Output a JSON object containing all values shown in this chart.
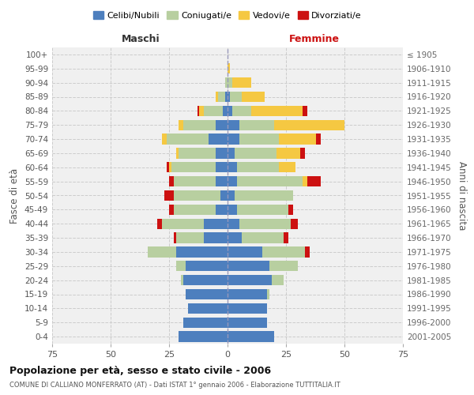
{
  "age_groups": [
    "0-4",
    "5-9",
    "10-14",
    "15-19",
    "20-24",
    "25-29",
    "30-34",
    "35-39",
    "40-44",
    "45-49",
    "50-54",
    "55-59",
    "60-64",
    "65-69",
    "70-74",
    "75-79",
    "80-84",
    "85-89",
    "90-94",
    "95-99",
    "100+"
  ],
  "birth_years": [
    "2001-2005",
    "1996-2000",
    "1991-1995",
    "1986-1990",
    "1981-1985",
    "1976-1980",
    "1971-1975",
    "1966-1970",
    "1961-1965",
    "1956-1960",
    "1951-1955",
    "1946-1950",
    "1941-1945",
    "1936-1940",
    "1931-1935",
    "1926-1930",
    "1921-1925",
    "1916-1920",
    "1911-1915",
    "1906-1910",
    "≤ 1905"
  ],
  "colors": {
    "celibi": "#4d7fbe",
    "coniugati": "#b8cfa0",
    "vedovi": "#f5c842",
    "divorziati": "#cc1111"
  },
  "maschi": {
    "celibi": [
      21,
      19,
      17,
      18,
      19,
      18,
      22,
      10,
      10,
      5,
      3,
      5,
      5,
      5,
      8,
      5,
      2,
      1,
      0,
      0,
      0
    ],
    "coniugati": [
      0,
      0,
      0,
      0,
      1,
      4,
      12,
      12,
      18,
      18,
      20,
      18,
      19,
      16,
      18,
      14,
      8,
      3,
      1,
      0,
      0
    ],
    "vedovi": [
      0,
      0,
      0,
      0,
      0,
      0,
      0,
      0,
      0,
      0,
      0,
      0,
      1,
      1,
      2,
      2,
      2,
      1,
      0,
      0,
      0
    ],
    "divorziati": [
      0,
      0,
      0,
      0,
      0,
      0,
      0,
      1,
      2,
      2,
      4,
      2,
      1,
      0,
      0,
      0,
      1,
      0,
      0,
      0,
      0
    ]
  },
  "femmine": {
    "celibi": [
      20,
      17,
      17,
      17,
      19,
      18,
      15,
      6,
      5,
      4,
      3,
      4,
      4,
      3,
      5,
      5,
      2,
      1,
      0,
      0,
      0
    ],
    "coniugati": [
      0,
      0,
      0,
      1,
      5,
      12,
      18,
      18,
      22,
      22,
      25,
      28,
      18,
      18,
      17,
      15,
      8,
      5,
      2,
      0,
      0
    ],
    "vedovi": [
      0,
      0,
      0,
      0,
      0,
      0,
      0,
      0,
      0,
      0,
      0,
      2,
      7,
      10,
      16,
      30,
      22,
      10,
      8,
      1,
      0
    ],
    "divorziati": [
      0,
      0,
      0,
      0,
      0,
      0,
      2,
      2,
      3,
      2,
      0,
      6,
      0,
      2,
      2,
      0,
      2,
      0,
      0,
      0,
      0
    ]
  },
  "xlim": 75,
  "title": "Popolazione per età, sesso e stato civile - 2006",
  "subtitle": "COMUNE DI CALLIANO MONFERRATO (AT) - Dati ISTAT 1° gennaio 2006 - Elaborazione TUTTITALIA.IT",
  "ylabel_left": "Fasce di età",
  "ylabel_right": "Anni di nascita",
  "label_maschi": "Maschi",
  "label_femmine": "Femmine",
  "legend_labels": [
    "Celibi/Nubili",
    "Coniugati/e",
    "Vedovi/e",
    "Divorziati/e"
  ],
  "bg_color": "#f0f0f0",
  "plot_bg": "#f0f0f0"
}
